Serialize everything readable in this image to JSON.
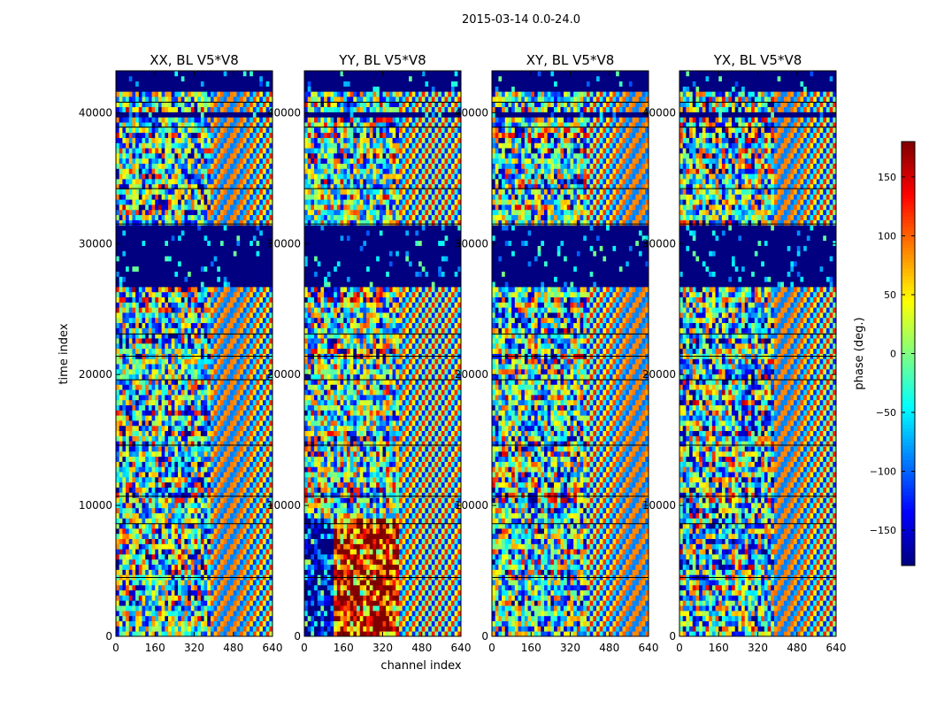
{
  "figure": {
    "suptitle": "2015-03-14 0.0-24.0",
    "xlabel": "channel index",
    "ylabel": "time index"
  },
  "chart_data": {
    "type": "heatmap",
    "title": "2015-03-14 0.0-24.0",
    "xlabel": "channel index",
    "ylabel": "time index",
    "xlim": [
      0,
      640
    ],
    "ylim": [
      0,
      43200
    ],
    "x_ticks": [
      0,
      160,
      320,
      480,
      640
    ],
    "y_ticks": [
      0,
      10000,
      20000,
      30000,
      40000
    ],
    "y_tick_labels": [
      "0",
      "10000",
      "20000",
      "30000",
      "40000"
    ],
    "colormap": "jet",
    "panels": [
      {
        "name": "XX",
        "title": "XX, BL V5*V8"
      },
      {
        "name": "YY",
        "title": "YY, BL V5*V8"
      },
      {
        "name": "XY",
        "title": "XY, BL V5*V8"
      },
      {
        "name": "YX",
        "title": "YX, BL V5*V8"
      }
    ],
    "colorbar": {
      "label": "phase (deg.)",
      "range": [
        -180,
        180
      ],
      "ticks": [
        -150,
        -100,
        -50,
        0,
        50,
        100,
        150
      ],
      "tick_labels": [
        "−150",
        "−100",
        "−50",
        "0",
        "50",
        "100",
        "150"
      ]
    }
  }
}
